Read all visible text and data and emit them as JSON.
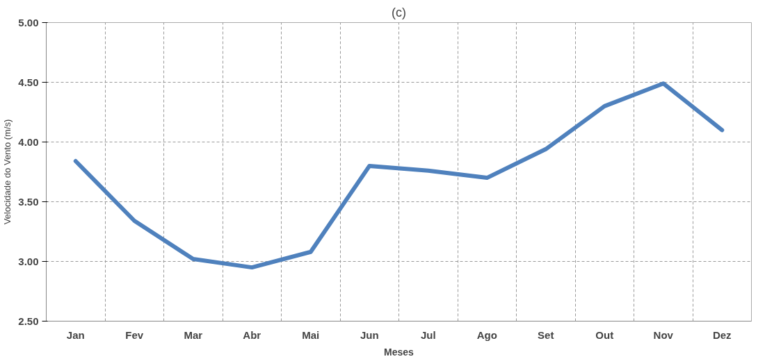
{
  "chart_data": {
    "type": "line",
    "title": "(c)",
    "xlabel": "Meses",
    "ylabel": "Velocidade do Vento (m/s)",
    "categories": [
      "Jan",
      "Fev",
      "Mar",
      "Abr",
      "Mai",
      "Jun",
      "Jul",
      "Ago",
      "Set",
      "Out",
      "Nov",
      "Dez"
    ],
    "series": [
      {
        "color": "#4f81bd",
        "values": [
          3.84,
          3.34,
          3.02,
          2.95,
          3.08,
          3.8,
          3.76,
          3.7,
          3.94,
          4.3,
          4.49,
          4.1
        ]
      }
    ],
    "ylim": [
      2.5,
      5.0
    ],
    "yticks": [
      {
        "value": 2.5,
        "label": "2.50"
      },
      {
        "value": 3.0,
        "label": "3.00"
      },
      {
        "value": 3.5,
        "label": "3.50"
      },
      {
        "value": 4.0,
        "label": "4.00"
      },
      {
        "value": 4.5,
        "label": "4.50"
      },
      {
        "value": 5.0,
        "label": "5.00"
      }
    ],
    "grid": true,
    "line_style": "solid",
    "marker": "none"
  }
}
